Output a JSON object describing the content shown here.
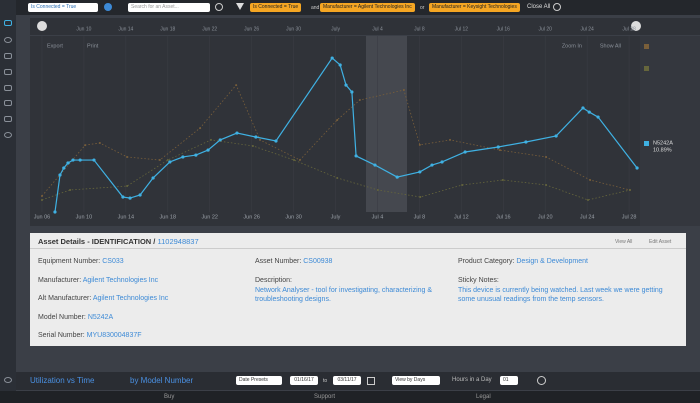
{
  "toolbar": {
    "filter_select": "Is Connected = True",
    "search_placeholder": "Search for an Asset...",
    "chips": [
      "Is Connected = True",
      "Manufacturer = Agilent Technologies Inc",
      "Manufacturer = Keysight Technologies"
    ],
    "joiners": [
      "and",
      "or"
    ],
    "close_all": "Close All"
  },
  "chart_data": {
    "type": "line",
    "export": "Export",
    "print": "Print",
    "zoom_in": "Zoom In",
    "show_all": "Show All",
    "xlim": [
      -0.19,
      14.26
    ],
    "ylim": [
      0,
      100
    ],
    "xticks": [
      {
        "value": 0,
        "label": "Jun 06"
      },
      {
        "value": 1,
        "label": "Jun 10"
      },
      {
        "value": 2,
        "label": "Jun 14"
      },
      {
        "value": 3,
        "label": "Jun 18"
      },
      {
        "value": 4,
        "label": "Jun 22"
      },
      {
        "value": 5,
        "label": "Jun 26"
      },
      {
        "value": 6,
        "label": "Jun 30"
      },
      {
        "value": 7,
        "label": "July"
      },
      {
        "value": 8,
        "label": "Jul 4"
      },
      {
        "value": 9,
        "label": "Jul 8"
      },
      {
        "value": 10,
        "label": "Jul 12"
      },
      {
        "value": 11,
        "label": "Jul 16"
      },
      {
        "value": 12,
        "label": "Jul 20"
      },
      {
        "value": 13,
        "label": "Jul 24"
      },
      {
        "value": 14,
        "label": "Jul 28"
      }
    ],
    "grid": true,
    "series": [
      {
        "color": "#7a5f3a",
        "x": [
          0,
          1.03,
          1.38,
          2.03,
          2.81,
          3.77,
          4.63,
          5.2,
          6.15,
          7.04,
          7.58,
          8.63,
          9.01,
          9.73,
          10.92,
          12.02,
          13.07,
          14.02
        ],
        "values": [
          9.3,
          38.9,
          40.1,
          32.0,
          30.2,
          48.8,
          73.8,
          41.9,
          30.2,
          53.5,
          65.1,
          70.9,
          39.0,
          41.9,
          36.0,
          32.0,
          18.6,
          12.8
        ]
      },
      {
        "color": "#66663c",
        "x": [
          0,
          0.67,
          2.03,
          3.0,
          4.03,
          5.03,
          6.01,
          7.04,
          8.01,
          9.02,
          10.02,
          10.99,
          12.02,
          13.02,
          14.02
        ],
        "values": [
          7.0,
          12.8,
          15.1,
          30.2,
          41.9,
          38.4,
          30.2,
          19.8,
          12.8,
          8.7,
          15.7,
          18.6,
          15.7,
          7.0,
          12.8
        ]
      },
      {
        "name": "N5242A",
        "legend_value": "10.89%",
        "color": "#3fb1e3",
        "x": [
          0.31,
          0.43,
          0.52,
          0.62,
          0.74,
          0.91,
          1.24,
          1.93,
          2.1,
          2.34,
          2.65,
          3.05,
          3.36,
          3.67,
          3.96,
          4.25,
          4.65,
          5.1,
          5.58,
          6.92,
          7.11,
          7.25,
          7.39,
          7.49,
          7.94,
          8.47,
          9.01,
          9.3,
          9.54,
          10.09,
          10.88,
          11.54,
          12.26,
          12.9,
          13.05,
          13.26,
          14.19
        ],
        "values": [
          0,
          21.5,
          25.6,
          28.5,
          30.2,
          30.2,
          30.2,
          8.7,
          8.1,
          9.9,
          19.8,
          29.1,
          32.0,
          33.1,
          36.0,
          41.9,
          45.9,
          43.6,
          41.3,
          89.5,
          85.5,
          73.8,
          69.8,
          32.6,
          27.3,
          20.3,
          23.3,
          27.3,
          29.1,
          34.9,
          37.8,
          40.7,
          44.2,
          60.5,
          58.1,
          55.2,
          25.6
        ]
      }
    ]
  },
  "asset_details": {
    "heading": "Asset Details - IDENTIFICATION /",
    "id": "1102948837",
    "view_all": "View All",
    "edit": "Edit Asset",
    "left": [
      {
        "label": "Equipment Number:",
        "value": "CS033"
      },
      {
        "label": "Manufacturer:",
        "value": "Agilent Technologies Inc"
      },
      {
        "label": "Alt Manufacturer:",
        "value": "Agilent Technologies Inc"
      },
      {
        "label": "Model Number:",
        "value": "N5242A"
      },
      {
        "label": "Serial Number:",
        "value": "MYU830004837F"
      }
    ],
    "asset_number": {
      "label": "Asset Number:",
      "value": "CS00938"
    },
    "description": {
      "label": "Description:",
      "value": "Network Analyser -  tool for investigating, characterizing & troubleshooting designs."
    },
    "product_category": {
      "label": "Product Category:",
      "value": "Design & Development"
    },
    "sticky_notes": {
      "label": "Sticky Notes:",
      "value": "This device is currently being watched. Last week we were getting some unusual readings from the temp sensors."
    }
  },
  "bottom_bar": {
    "view": "Utilization vs Time",
    "group": "by Model Number",
    "date_presets": "Date Presets",
    "from": "01/16/17",
    "to_word": "to",
    "to": "03/11/17",
    "view_by": "View by Days",
    "hours_label": "Hours in a Day",
    "hours": "01"
  },
  "footer": [
    "Buy",
    "Support",
    "Legal"
  ]
}
